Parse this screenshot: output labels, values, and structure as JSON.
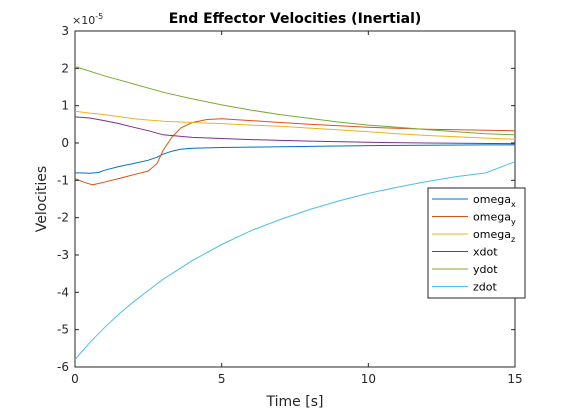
{
  "chart_data": {
    "type": "line",
    "title": "End Effector Velocities (Inertial)",
    "xlabel": "Time [s]",
    "ylabel": "Velocities",
    "y_exponent_label": "×10",
    "y_exponent_power": "-5",
    "xlim": [
      0,
      15
    ],
    "ylim": [
      -6,
      3
    ],
    "y_scale_factor": 1e-05,
    "xticks": [
      0,
      5,
      10,
      15
    ],
    "xtick_labels": [
      "0",
      "5",
      "10",
      "15"
    ],
    "yticks": [
      -6,
      -5,
      -4,
      -3,
      -2,
      -1,
      0,
      1,
      2,
      3
    ],
    "ytick_labels": [
      "-6",
      "-5",
      "-4",
      "-3",
      "-2",
      "-1",
      "0",
      "1",
      "2",
      "3"
    ],
    "grid": false,
    "legend_position": "right",
    "series": [
      {
        "name": "omega",
        "subscript": "x",
        "color": "#0072BD",
        "x": [
          0,
          0.2,
          0.5,
          0.8,
          1.0,
          1.5,
          2.0,
          2.5,
          2.8,
          3.0,
          3.3,
          3.6,
          4.0,
          5.0,
          6.0,
          8.0,
          10.0,
          12.0,
          14.0,
          15.0
        ],
        "y": [
          -0.8,
          -0.8,
          -0.81,
          -0.79,
          -0.73,
          -0.63,
          -0.55,
          -0.46,
          -0.38,
          -0.3,
          -0.22,
          -0.17,
          -0.14,
          -0.12,
          -0.11,
          -0.09,
          -0.07,
          -0.06,
          -0.05,
          -0.05
        ]
      },
      {
        "name": "omega",
        "subscript": "y",
        "color": "#D95319",
        "x": [
          0,
          0.3,
          0.6,
          1.0,
          1.5,
          2.0,
          2.5,
          2.8,
          3.0,
          3.3,
          3.6,
          4.0,
          4.5,
          5.0,
          6.0,
          7.0,
          8.0,
          10.0,
          12.0,
          15.0
        ],
        "y": [
          -0.95,
          -1.05,
          -1.12,
          -1.05,
          -0.95,
          -0.85,
          -0.75,
          -0.55,
          -0.2,
          0.15,
          0.4,
          0.55,
          0.63,
          0.65,
          0.6,
          0.55,
          0.5,
          0.42,
          0.37,
          0.33
        ]
      },
      {
        "name": "omega",
        "subscript": "z",
        "color": "#EDB120",
        "x": [
          0,
          0.5,
          1.0,
          2.0,
          3.0,
          4.0,
          5.0,
          6.0,
          7.0,
          8.0,
          9.0,
          10.0,
          11.0,
          12.0,
          13.0,
          14.0,
          15.0
        ],
        "y": [
          0.85,
          0.8,
          0.76,
          0.65,
          0.58,
          0.55,
          0.52,
          0.48,
          0.45,
          0.4,
          0.35,
          0.3,
          0.25,
          0.2,
          0.17,
          0.13,
          0.1
        ]
      },
      {
        "name": "xdot",
        "subscript": "",
        "color": "#7E2F8E",
        "x": [
          0,
          0.5,
          1.0,
          1.5,
          2.0,
          2.5,
          3.0,
          4.0,
          5.0,
          6.0,
          7.0,
          8.0,
          10.0,
          12.0,
          15.0
        ],
        "y": [
          0.7,
          0.67,
          0.6,
          0.52,
          0.42,
          0.33,
          0.22,
          0.15,
          0.12,
          0.09,
          0.07,
          0.05,
          0.02,
          0.0,
          -0.02
        ]
      },
      {
        "name": "ydot",
        "subscript": "",
        "color": "#77AC30",
        "x": [
          0,
          1,
          2,
          3,
          4,
          5,
          6,
          7,
          8,
          9,
          10,
          11,
          12,
          13,
          14,
          15
        ],
        "y": [
          2.05,
          1.8,
          1.58,
          1.36,
          1.18,
          1.02,
          0.88,
          0.76,
          0.66,
          0.56,
          0.48,
          0.42,
          0.36,
          0.3,
          0.25,
          0.22
        ]
      },
      {
        "name": "zdot",
        "subscript": "",
        "color": "#4DBEEE",
        "x": [
          0,
          0.5,
          1,
          1.5,
          2,
          2.5,
          3,
          4,
          5,
          6,
          7,
          8,
          9,
          10,
          11,
          12,
          13,
          14,
          15
        ],
        "y": [
          -5.8,
          -5.35,
          -4.95,
          -4.58,
          -4.25,
          -3.95,
          -3.65,
          -3.15,
          -2.72,
          -2.35,
          -2.05,
          -1.78,
          -1.55,
          -1.35,
          -1.18,
          -1.03,
          -0.9,
          -0.8,
          -0.5
        ]
      }
    ]
  }
}
